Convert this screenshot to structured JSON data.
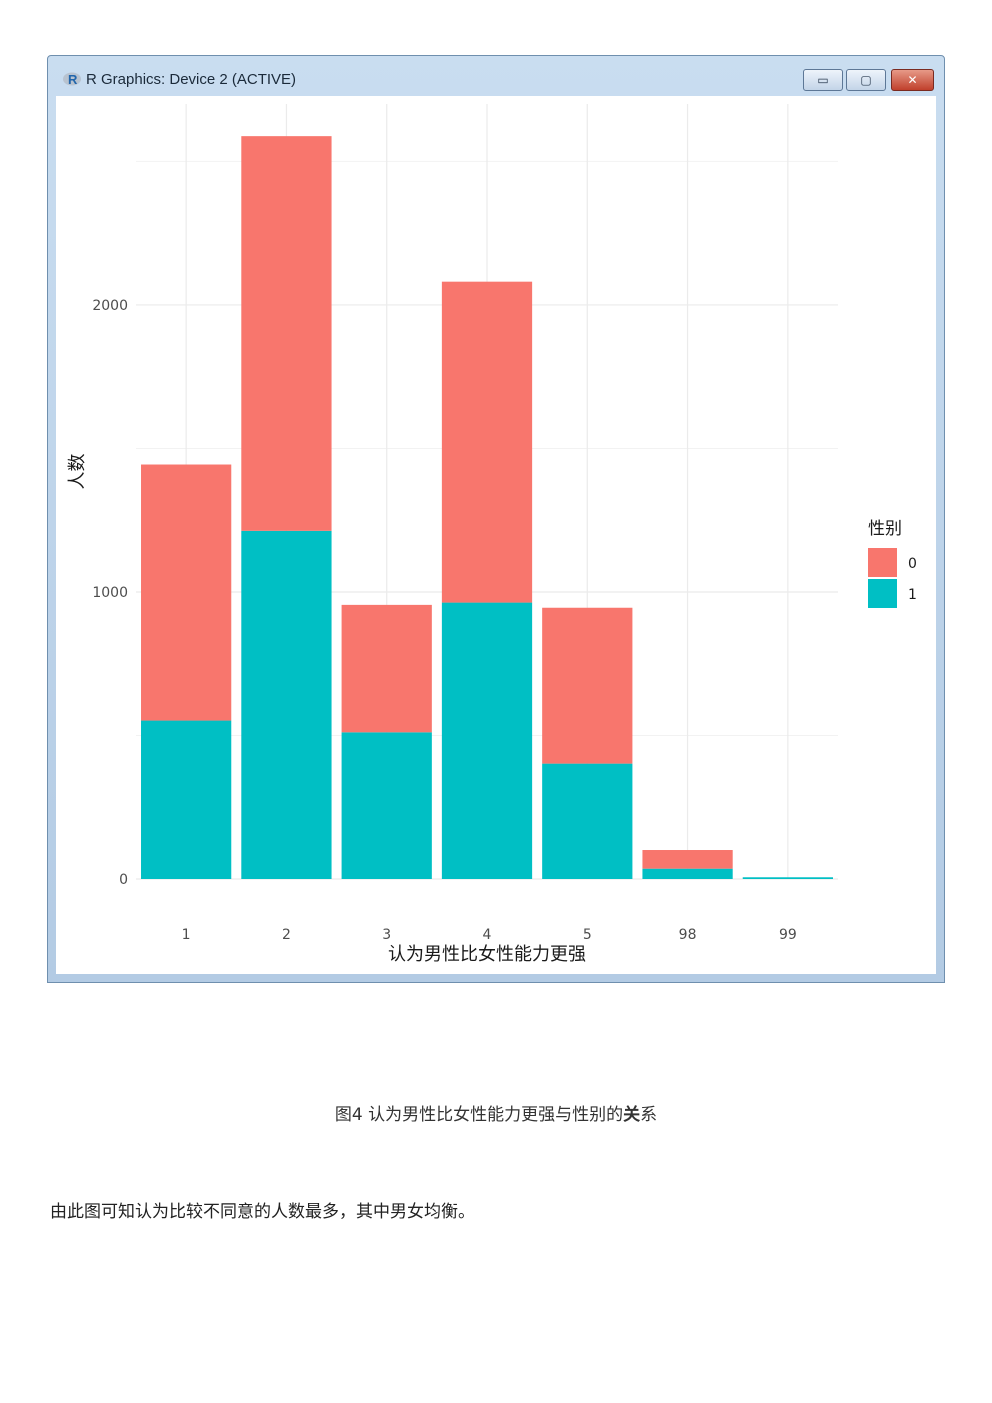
{
  "window": {
    "title": "R Graphics: Device 2 (ACTIVE)",
    "buttons": {
      "minimize": "▭",
      "maximize": "▢",
      "close": "✕"
    }
  },
  "chart_data": {
    "type": "bar",
    "stacked": true,
    "categories": [
      "1",
      "2",
      "3",
      "4",
      "5",
      "98",
      "99"
    ],
    "series": [
      {
        "name": "0",
        "color": "#F8766D",
        "values": [
          892,
          1375,
          444,
          1118,
          543,
          65,
          0
        ]
      },
      {
        "name": "1",
        "color": "#00BFC4",
        "values": [
          552,
          1213,
          511,
          963,
          402,
          36,
          6
        ]
      }
    ],
    "xlabel": "认为男性比女性能力更强",
    "ylabel": "人数",
    "yticks": [
      0,
      1000,
      2000
    ],
    "ylim": [
      0,
      2700
    ],
    "legend": {
      "title": "性别",
      "position": "right"
    },
    "grid": true
  },
  "caption": {
    "prefix": "图4 认为男性比女性能力更强与性别的",
    "bold": "关",
    "suffix": "系"
  },
  "paragraph": "由此图可知认为比较不同意的人数最多，其中男女均衡。"
}
